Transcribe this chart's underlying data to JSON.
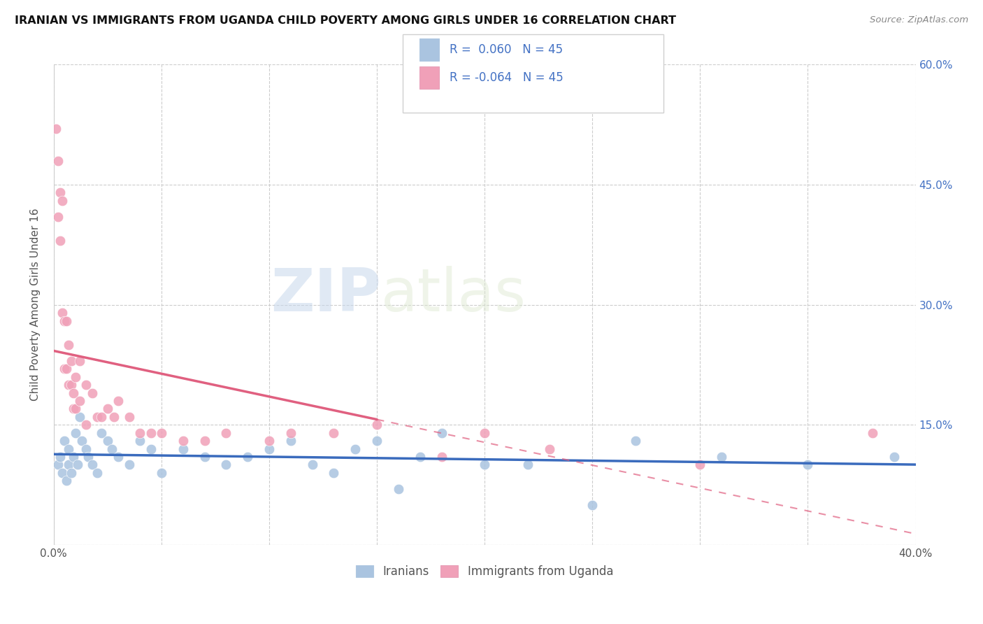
{
  "title": "IRANIAN VS IMMIGRANTS FROM UGANDA CHILD POVERTY AMONG GIRLS UNDER 16 CORRELATION CHART",
  "source": "Source: ZipAtlas.com",
  "ylabel": "Child Poverty Among Girls Under 16",
  "xlim": [
    0.0,
    0.4
  ],
  "ylim": [
    0.0,
    0.6
  ],
  "legend_label1": "Iranians",
  "legend_label2": "Immigrants from Uganda",
  "color_iranians": "#aac4e0",
  "color_uganda": "#f0a0b8",
  "color_line_iranians": "#3a6bbd",
  "color_line_uganda": "#e06080",
  "iranians_x": [
    0.002,
    0.003,
    0.004,
    0.005,
    0.006,
    0.007,
    0.007,
    0.008,
    0.009,
    0.01,
    0.011,
    0.012,
    0.013,
    0.015,
    0.016,
    0.018,
    0.02,
    0.022,
    0.025,
    0.027,
    0.03,
    0.035,
    0.04,
    0.045,
    0.05,
    0.06,
    0.07,
    0.08,
    0.09,
    0.1,
    0.11,
    0.12,
    0.13,
    0.14,
    0.15,
    0.16,
    0.17,
    0.18,
    0.2,
    0.22,
    0.25,
    0.27,
    0.31,
    0.35,
    0.39
  ],
  "iranians_y": [
    0.1,
    0.11,
    0.09,
    0.13,
    0.08,
    0.12,
    0.1,
    0.09,
    0.11,
    0.14,
    0.1,
    0.16,
    0.13,
    0.12,
    0.11,
    0.1,
    0.09,
    0.14,
    0.13,
    0.12,
    0.11,
    0.1,
    0.13,
    0.12,
    0.09,
    0.12,
    0.11,
    0.1,
    0.11,
    0.12,
    0.13,
    0.1,
    0.09,
    0.12,
    0.13,
    0.07,
    0.11,
    0.14,
    0.1,
    0.1,
    0.05,
    0.13,
    0.11,
    0.1,
    0.11
  ],
  "uganda_x": [
    0.001,
    0.002,
    0.002,
    0.003,
    0.003,
    0.004,
    0.004,
    0.005,
    0.005,
    0.006,
    0.006,
    0.007,
    0.007,
    0.008,
    0.008,
    0.009,
    0.009,
    0.01,
    0.01,
    0.012,
    0.012,
    0.015,
    0.015,
    0.018,
    0.02,
    0.022,
    0.025,
    0.028,
    0.03,
    0.035,
    0.04,
    0.045,
    0.05,
    0.06,
    0.07,
    0.08,
    0.1,
    0.11,
    0.13,
    0.15,
    0.18,
    0.2,
    0.23,
    0.3,
    0.38
  ],
  "uganda_y": [
    0.52,
    0.48,
    0.41,
    0.44,
    0.38,
    0.43,
    0.29,
    0.28,
    0.22,
    0.28,
    0.22,
    0.25,
    0.2,
    0.23,
    0.2,
    0.19,
    0.17,
    0.21,
    0.17,
    0.23,
    0.18,
    0.2,
    0.15,
    0.19,
    0.16,
    0.16,
    0.17,
    0.16,
    0.18,
    0.16,
    0.14,
    0.14,
    0.14,
    0.13,
    0.13,
    0.14,
    0.13,
    0.14,
    0.14,
    0.15,
    0.11,
    0.14,
    0.12,
    0.1,
    0.14
  ]
}
